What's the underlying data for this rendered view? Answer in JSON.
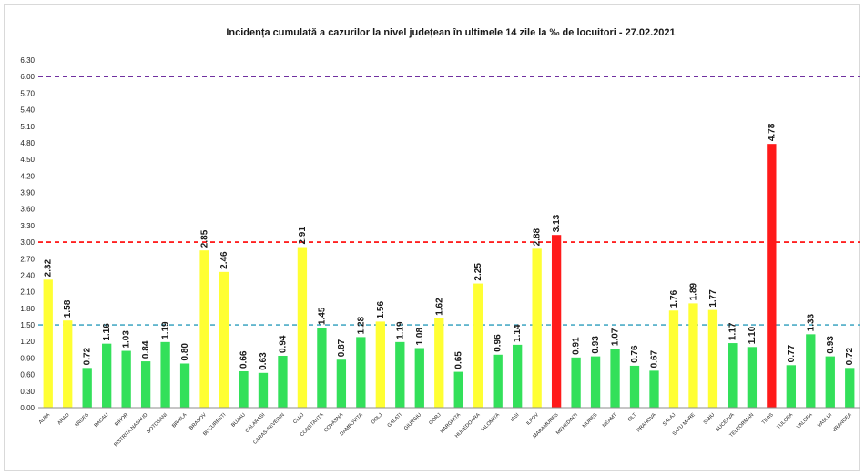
{
  "chart_data": {
    "type": "bar",
    "title": "Incidența cumulată a cazurilor la nivel județean în ultimele 14 zile la ‰ de locuitori - 27.02.2021",
    "xlabel": "",
    "ylabel": "",
    "ylim": [
      0,
      6.3
    ],
    "y_ticks": [
      "0.00",
      "0.30",
      "0.60",
      "0.90",
      "1.20",
      "1.50",
      "1.80",
      "2.10",
      "2.40",
      "2.70",
      "3.00",
      "3.30",
      "3.60",
      "3.90",
      "4.20",
      "4.50",
      "4.80",
      "5.10",
      "5.40",
      "5.70",
      "6.00",
      "6.30"
    ],
    "grid": false,
    "legend": "none",
    "categories": [
      "ALBA",
      "ARAD",
      "ARGES",
      "BACAU",
      "BIHOR",
      "BISTRITA NASAUD",
      "BOTOSANI",
      "BRAILA",
      "BRASOV",
      "BUCURESTI",
      "BUZAU",
      "CALARASI",
      "CARAS-SEVERIN",
      "CLUJ",
      "CONSTANTA",
      "COVASNA",
      "DAMBOVITA",
      "DOLJ",
      "GALATI",
      "GIURGIU",
      "GORJ",
      "HARGHITA",
      "HUNEDOARA",
      "IALOMITA",
      "IASI",
      "ILFOV",
      "MARAMURES",
      "MEHEDINTI",
      "MURES",
      "NEAMT",
      "OLT",
      "PRAHOVA",
      "SALAJ",
      "SATU MARE",
      "SIBIU",
      "SUCEAVA",
      "TELEORMAN",
      "TIMIS",
      "TULCEA",
      "VALCEA",
      "VASLUI",
      "VRANCEA"
    ],
    "values": [
      2.32,
      1.58,
      0.72,
      1.16,
      1.03,
      0.84,
      1.19,
      0.8,
      2.85,
      2.46,
      0.66,
      0.63,
      0.94,
      2.91,
      1.45,
      0.87,
      1.28,
      1.56,
      1.19,
      1.08,
      1.62,
      0.65,
      2.25,
      0.96,
      1.14,
      2.88,
      3.13,
      0.91,
      0.93,
      1.07,
      0.76,
      0.67,
      1.76,
      1.89,
      1.77,
      1.17,
      1.1,
      4.78,
      0.77,
      1.33,
      0.93,
      0.72
    ],
    "value_labels": [
      "2.32",
      "1.58",
      "0.72",
      "1.16",
      "1.03",
      "0.84",
      "1.19",
      "0.80",
      "2.85",
      "2.46",
      "0.66",
      "0.63",
      "0.94",
      "2.91",
      "1.45",
      "0.87",
      "1.28",
      "1.56",
      "1.19",
      "1.08",
      "1.62",
      "0.65",
      "2.25",
      "0.96",
      "1.14",
      "2.88",
      "3.13",
      "0.91",
      "0.93",
      "1.07",
      "0.76",
      "0.67",
      "1.76",
      "1.89",
      "1.77",
      "1.17",
      "1.10",
      "4.78",
      "0.77",
      "1.33",
      "0.93",
      "0.72"
    ],
    "thresholds": [
      {
        "value": 1.5,
        "color": "#4bacc6"
      },
      {
        "value": 3.0,
        "color": "#ff0000"
      },
      {
        "value": 6.0,
        "color": "#7030a0"
      }
    ],
    "colors": {
      "green": "#33e05a",
      "yellow": "#ffff33",
      "red": "#ff1a1a",
      "axis": "#8c8c8c"
    }
  }
}
